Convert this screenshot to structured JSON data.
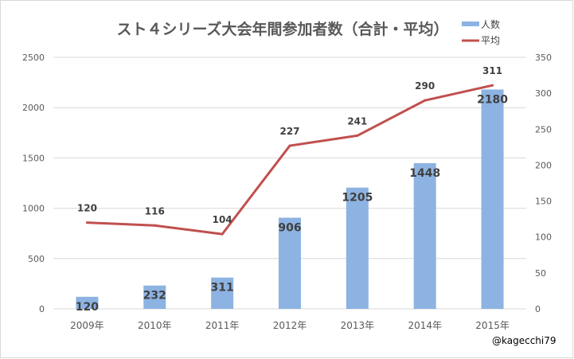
{
  "chart_data": {
    "type": "bar+line",
    "title": "スト４シリーズ大会年間参加者数（合計・平均）",
    "categories": [
      "2009年",
      "2010年",
      "2011年",
      "2012年",
      "2013年",
      "2014年",
      "2015年"
    ],
    "series": [
      {
        "name": "人数",
        "type": "bar",
        "axis": "left",
        "color": "#8DB3E2",
        "values": [
          120,
          232,
          311,
          906,
          1205,
          1448,
          2180
        ]
      },
      {
        "name": "平均",
        "type": "line",
        "axis": "right",
        "color": "#C0504D",
        "values": [
          120,
          116,
          104,
          227,
          241,
          290,
          311
        ]
      }
    ],
    "left_axis": {
      "range": [
        0,
        2500
      ],
      "ticks": [
        "0",
        "500",
        "1000",
        "1500",
        "2000",
        "2500"
      ]
    },
    "right_axis": {
      "range": [
        0,
        350
      ],
      "ticks": [
        "0",
        "50",
        "100",
        "150",
        "200",
        "250",
        "300",
        "350"
      ]
    },
    "grid": true,
    "legend_position": "top-right",
    "watermark": "@kagecchi79"
  }
}
